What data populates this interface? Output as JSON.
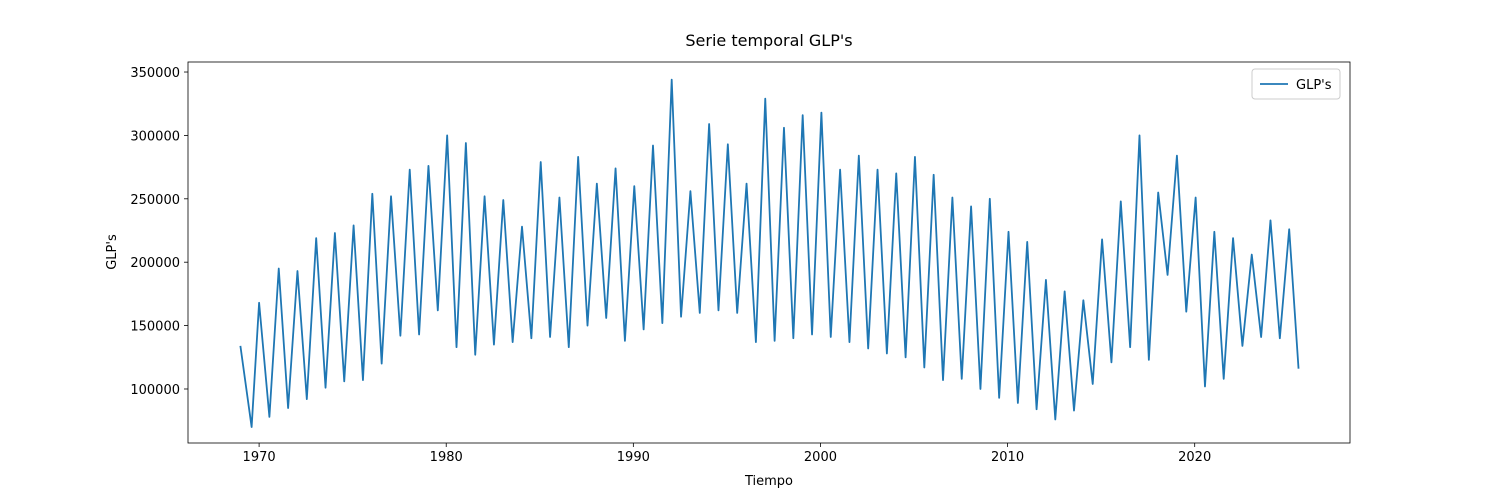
{
  "chart_data": {
    "type": "line",
    "title": "Serie temporal GLP's",
    "x_label": "Tiempo",
    "y_label": "GLP's",
    "x": [
      1969.0,
      1969.6,
      1970.0,
      1970.55,
      1971.05,
      1971.55,
      1972.05,
      1972.55,
      1973.05,
      1973.55,
      1974.05,
      1974.55,
      1975.05,
      1975.55,
      1976.05,
      1976.55,
      1977.05,
      1977.55,
      1978.05,
      1978.55,
      1979.05,
      1979.55,
      1980.05,
      1980.55,
      1981.05,
      1981.55,
      1982.05,
      1982.55,
      1983.05,
      1983.55,
      1984.05,
      1984.55,
      1985.05,
      1985.55,
      1986.05,
      1986.55,
      1987.05,
      1987.55,
      1988.05,
      1988.55,
      1989.05,
      1989.55,
      1990.05,
      1990.55,
      1991.05,
      1991.55,
      1992.05,
      1992.55,
      1993.05,
      1993.55,
      1994.05,
      1994.55,
      1995.05,
      1995.55,
      1996.05,
      1996.55,
      1997.05,
      1997.55,
      1998.05,
      1998.55,
      1999.05,
      1999.55,
      2000.05,
      2000.55,
      2001.05,
      2001.55,
      2002.05,
      2002.55,
      2003.05,
      2003.55,
      2004.05,
      2004.55,
      2005.05,
      2005.55,
      2006.05,
      2006.55,
      2007.05,
      2007.55,
      2008.05,
      2008.55,
      2009.05,
      2009.55,
      2010.05,
      2010.55,
      2011.05,
      2011.55,
      2012.05,
      2012.55,
      2013.05,
      2013.55,
      2014.05,
      2014.55,
      2015.05,
      2015.55,
      2016.05,
      2016.55,
      2017.05,
      2017.55,
      2018.05,
      2018.55,
      2019.05,
      2019.55,
      2020.05,
      2020.55,
      2021.05,
      2021.55,
      2022.05,
      2022.55,
      2023.05,
      2023.55,
      2024.05,
      2024.55,
      2025.05,
      2025.55
    ],
    "series": [
      {
        "name": "GLP's",
        "color": "#1f77b4",
        "values": [
          134000,
          70000,
          168000,
          78000,
          195000,
          85000,
          193000,
          92000,
          219000,
          101000,
          223000,
          106000,
          229000,
          107000,
          254000,
          120000,
          252000,
          142000,
          273000,
          143000,
          276000,
          162000,
          300000,
          133000,
          294000,
          127000,
          252000,
          135000,
          249000,
          137000,
          228000,
          140000,
          279000,
          141000,
          251000,
          133000,
          283000,
          150000,
          262000,
          156000,
          274000,
          138000,
          260000,
          147000,
          292000,
          152000,
          344000,
          157000,
          256000,
          160000,
          309000,
          162000,
          293000,
          160000,
          262000,
          137000,
          329000,
          138000,
          306000,
          140000,
          316000,
          143000,
          318000,
          141000,
          273000,
          137000,
          284000,
          132000,
          273000,
          128000,
          270000,
          125000,
          283000,
          117000,
          269000,
          107000,
          251000,
          108000,
          244000,
          100000,
          250000,
          93000,
          224000,
          89000,
          216000,
          84000,
          186000,
          76000,
          177000,
          83000,
          170000,
          104000,
          218000,
          121000,
          248000,
          133000,
          300000,
          123000,
          255000,
          190000,
          284000,
          161000,
          251000,
          102000,
          224000,
          108000,
          219000,
          134000,
          206000,
          141000,
          233000,
          140000,
          226000,
          116000
        ]
      }
    ],
    "xlim": [
      1966.2,
      2028.3
    ],
    "ylim": [
      57400,
      357900
    ],
    "xticks": [
      1970,
      1980,
      1990,
      2000,
      2010,
      2020
    ],
    "yticks": [
      100000,
      150000,
      200000,
      250000,
      300000,
      350000
    ],
    "grid": false,
    "legend": "upper right"
  }
}
